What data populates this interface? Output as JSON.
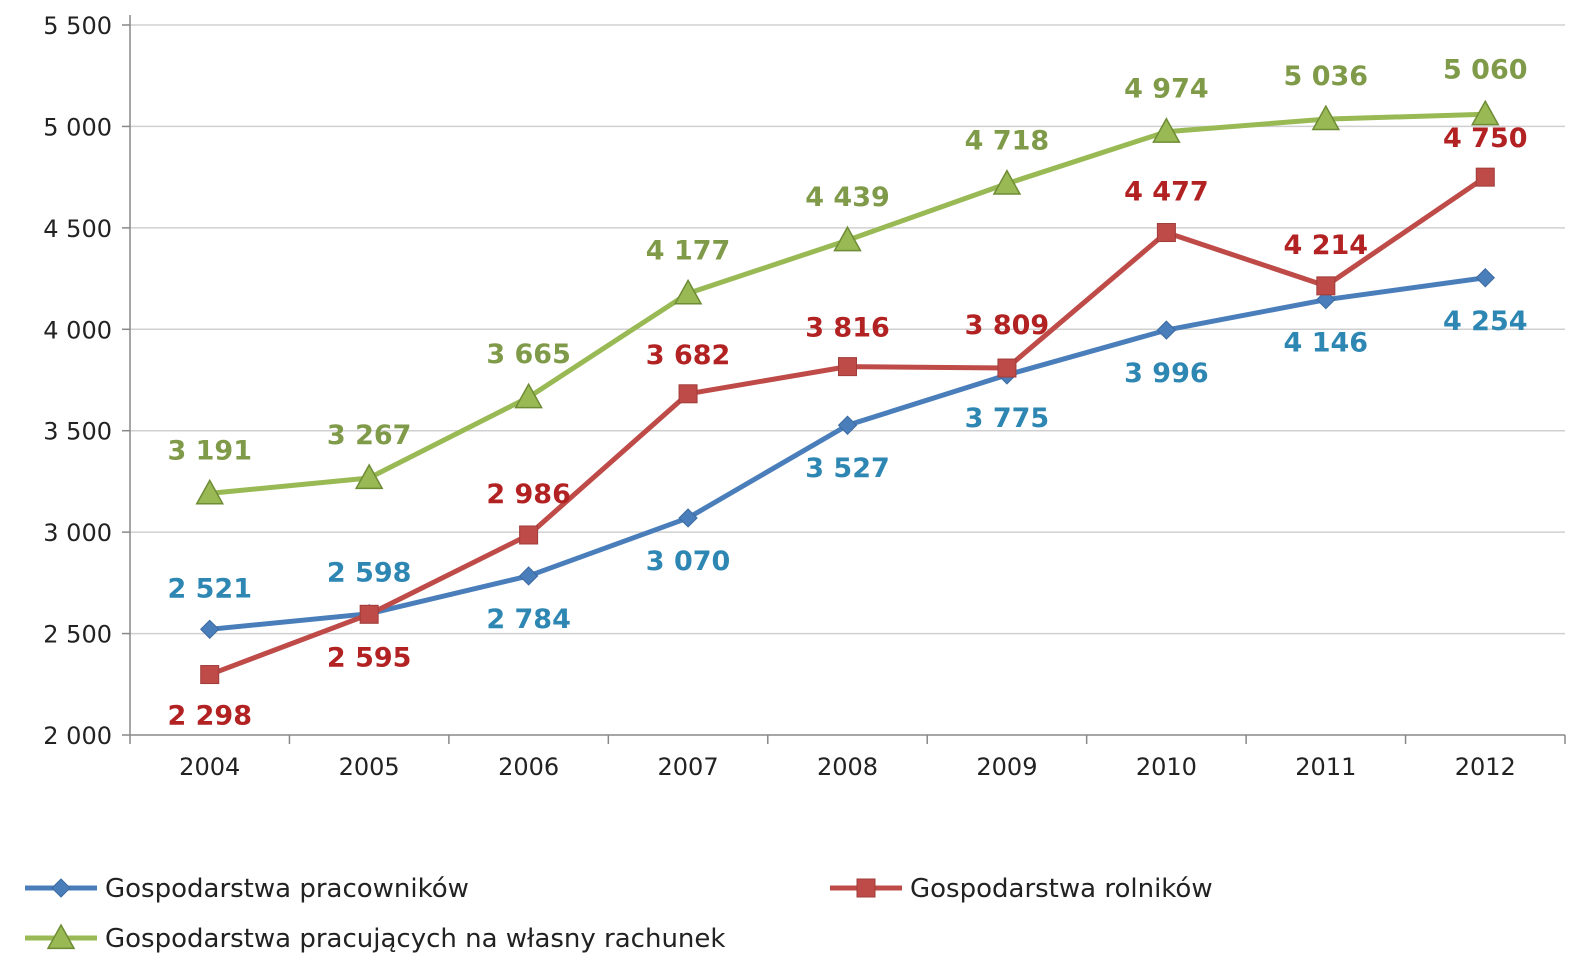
{
  "chart_data": {
    "type": "line",
    "title": "",
    "xlabel": "",
    "ylabel": "",
    "categories": [
      "2004",
      "2005",
      "2006",
      "2007",
      "2008",
      "2009",
      "2010",
      "2011",
      "2012"
    ],
    "ylim": [
      2000,
      5500
    ],
    "yticks": [
      2000,
      2500,
      3000,
      3500,
      4000,
      4500,
      5000,
      5500
    ],
    "ytick_labels": [
      "2 000",
      "2 500",
      "3 000",
      "3 500",
      "4 000",
      "4 500",
      "5 000",
      "5 500"
    ],
    "grid": true,
    "legend_position": "bottom",
    "series": [
      {
        "name": "Gospodarstwa pracowników",
        "color": "#4a7ebb",
        "label_color": "#2e86b3",
        "marker": "diamond",
        "values": [
          2521,
          2598,
          2784,
          3070,
          3527,
          3775,
          3996,
          4146,
          4254
        ],
        "labels": [
          "2 521",
          "2 598",
          "2 784",
          "3 070",
          "3 527",
          "3 775",
          "3 996",
          "4 146",
          "4 254"
        ]
      },
      {
        "name": "Gospodarstwa rolników",
        "color": "#be4b48",
        "label_color": "#b22222",
        "marker": "square",
        "values": [
          2298,
          2595,
          2986,
          3682,
          3816,
          3809,
          4477,
          4214,
          4750
        ],
        "labels": [
          "2 298",
          "2 595",
          "2 986",
          "3 682",
          "3 816",
          "3 809",
          "4 477",
          "4 214",
          "4 750"
        ]
      },
      {
        "name": "Gospodarstwa pracujących na własny rachunek",
        "color": "#98b954",
        "label_color": "#7f9a48",
        "marker": "triangle",
        "values": [
          3191,
          3267,
          3665,
          4177,
          4439,
          4718,
          4974,
          5036,
          5060
        ],
        "labels": [
          "3 191",
          "3 267",
          "3 665",
          "4 177",
          "4 439",
          "4 718",
          "4 974",
          "5 036",
          "5 060"
        ]
      }
    ]
  }
}
